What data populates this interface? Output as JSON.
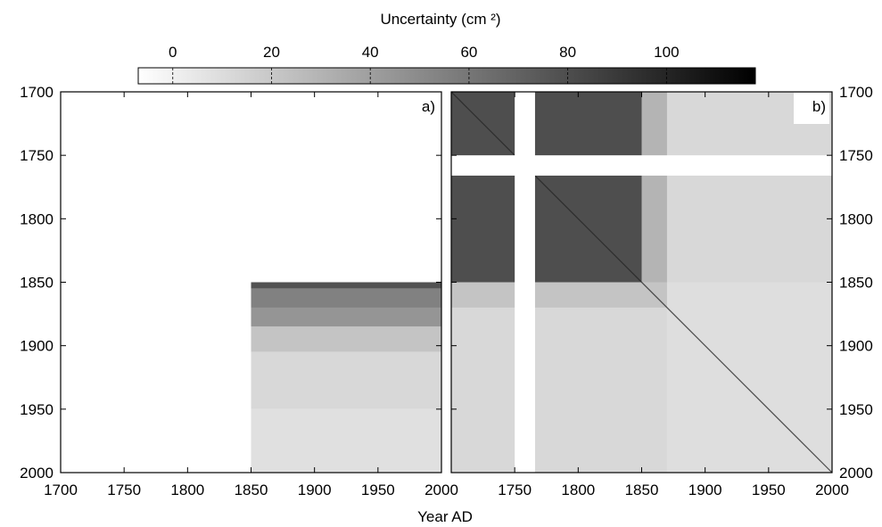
{
  "chart_data": {
    "type": "heatmap",
    "colorbar": {
      "label": "Uncertainty (cm ²)",
      "ticks": [
        0,
        20,
        40,
        60,
        80,
        100
      ],
      "range": [
        -7,
        118
      ],
      "colormap": {
        "low": "#ffffff",
        "high": "#000000"
      }
    },
    "xlabel": "Year AD",
    "panels": [
      {
        "id": "a",
        "label": "a)",
        "x_range": [
          1700,
          2000
        ],
        "y_range": [
          1700,
          2000
        ],
        "y_inverted": true,
        "x_ticks": [
          1700,
          1750,
          1800,
          1850,
          1900,
          1950,
          2000
        ],
        "y_ticks": [
          1700,
          1750,
          1800,
          1850,
          1900,
          1950,
          2000
        ],
        "y_axis_side": "left",
        "data_region": {
          "x": [
            1850,
            2000
          ],
          "y": [
            1850,
            2000
          ]
        },
        "approx_values": [
          {
            "y_band": [
              1850,
              1855
            ],
            "value": 78
          },
          {
            "y_band": [
              1855,
              1870
            ],
            "value": 55
          },
          {
            "y_band": [
              1870,
              1885
            ],
            "value": 45
          },
          {
            "y_band": [
              1885,
              1905
            ],
            "value": 22
          },
          {
            "y_band": [
              1905,
              1950
            ],
            "value": 12
          },
          {
            "y_band": [
              1950,
              2000
            ],
            "value": 8
          }
        ]
      },
      {
        "id": "b",
        "label": "b)",
        "x_range": [
          1700,
          2000
        ],
        "y_range": [
          1700,
          2000
        ],
        "y_inverted": true,
        "x_ticks": [
          1750,
          1800,
          1850,
          1900,
          1950,
          2000
        ],
        "y_ticks": [
          1700,
          1750,
          1800,
          1850,
          1900,
          1950,
          2000
        ],
        "y_axis_side": "right",
        "blocks": [
          {
            "x": [
              1700,
              1850
            ],
            "y": [
              1700,
              1850
            ],
            "value": 80
          },
          {
            "x": [
              1850,
              1870
            ],
            "y": [
              1700,
              1850
            ],
            "value": 30
          },
          {
            "x": [
              1870,
              2000
            ],
            "y": [
              1700,
              1850
            ],
            "value": 12
          },
          {
            "x": [
              1700,
              1870
            ],
            "y": [
              1850,
              1870
            ],
            "value": 22
          },
          {
            "x": [
              1700,
              1870
            ],
            "y": [
              1870,
              2000
            ],
            "value": 12
          },
          {
            "x": [
              1870,
              2000
            ],
            "y": [
              1850,
              2000
            ],
            "value": 9
          }
        ],
        "diagonal_value": 100,
        "gaps": [
          {
            "axis": "x",
            "range": [
              1750,
              1766
            ]
          },
          {
            "axis": "y",
            "range": [
              1750,
              1766
            ]
          }
        ]
      }
    ]
  }
}
